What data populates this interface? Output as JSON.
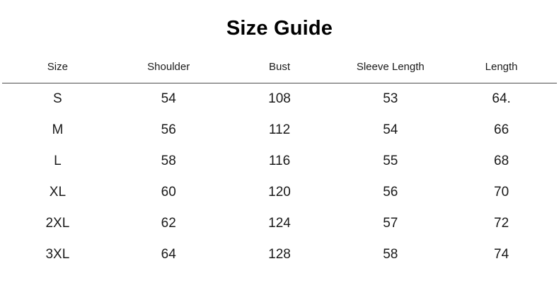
{
  "page": {
    "title": "Size Guide"
  },
  "table": {
    "headers": [
      "Size",
      "Shoulder",
      "Bust",
      "Sleeve Length",
      "Length"
    ],
    "rows": [
      [
        "S",
        "54",
        "108",
        "53",
        "64."
      ],
      [
        "M",
        "56",
        "112",
        "54",
        "66"
      ],
      [
        "L",
        "58",
        "116",
        "55",
        "68"
      ],
      [
        "XL",
        "60",
        "120",
        "56",
        "70"
      ],
      [
        "2XL",
        "62",
        "124",
        "57",
        "72"
      ],
      [
        "3XL",
        "64",
        "128",
        "58",
        "74"
      ]
    ]
  },
  "colors": {
    "background": "#ffffff",
    "text": "#1a1a1a",
    "title": "#000000",
    "divider": "#4d4d4d"
  }
}
